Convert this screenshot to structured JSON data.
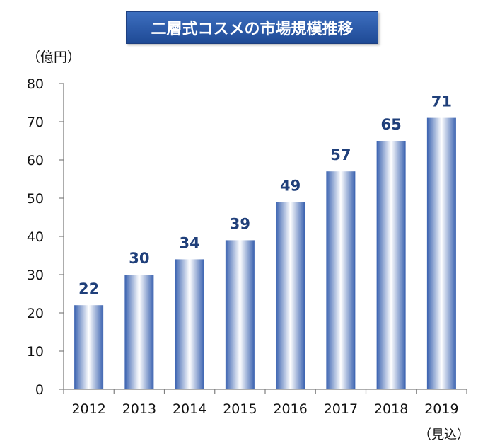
{
  "title": "二層式コスメの市場規模推移",
  "unit": "（億円）",
  "footnote": "（見込）",
  "chart_data": {
    "type": "bar",
    "title": "二層式コスメの市場規模推移",
    "ylabel": "（億円）",
    "xlabel": "",
    "categories": [
      "2012",
      "2013",
      "2014",
      "2015",
      "2016",
      "2017",
      "2018",
      "2019"
    ],
    "values": [
      22,
      30,
      34,
      39,
      49,
      57,
      65,
      71
    ],
    "ylim": [
      0,
      80
    ],
    "yticks": [
      0,
      10,
      20,
      30,
      40,
      50,
      60,
      70,
      80
    ],
    "grid": false,
    "legend": "none",
    "colors": {
      "bar_edge": "#3a62b0",
      "bar_center": "#ffffff",
      "label": "#1f3f7a"
    }
  }
}
